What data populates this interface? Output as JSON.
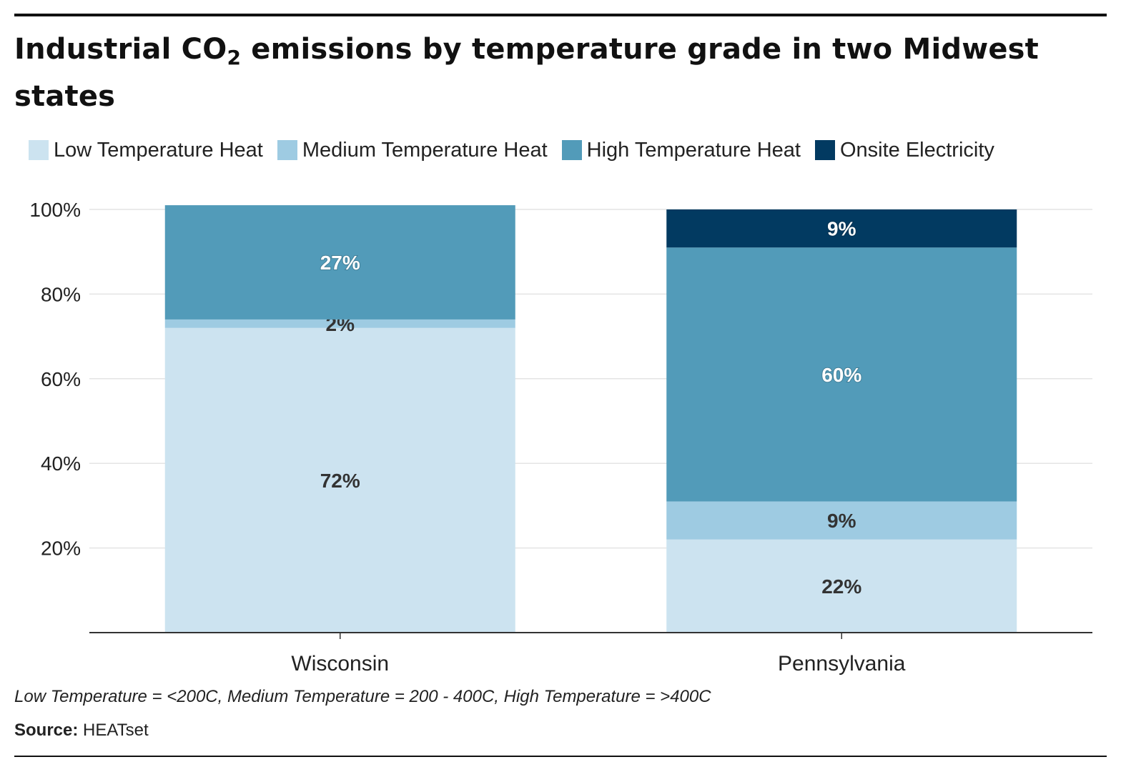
{
  "header": {
    "title_pre": "Industrial CO",
    "title_sub": "2",
    "title_post": " emissions by temperature grade in two Midwest states"
  },
  "legend": [
    {
      "label": "Low Temperature Heat",
      "color": "#cce3f0"
    },
    {
      "label": "Medium Temperature Heat",
      "color": "#9ecbe2"
    },
    {
      "label": "High Temperature Heat",
      "color": "#529bb9"
    },
    {
      "label": "Onsite Electricity",
      "color": "#023a61"
    }
  ],
  "chart_data": {
    "type": "bar",
    "stacked": true,
    "title": "Industrial CO2 emissions by temperature grade in two Midwest states",
    "categories": [
      "Wisconsin",
      "Pennsylvania"
    ],
    "series": [
      {
        "name": "Low Temperature Heat",
        "color": "#cce3f0",
        "values": [
          72,
          22
        ],
        "labels": [
          "72%",
          "22%"
        ]
      },
      {
        "name": "Medium Temperature Heat",
        "color": "#9ecbe2",
        "values": [
          2,
          9
        ],
        "labels": [
          "2%",
          "9%"
        ]
      },
      {
        "name": "High Temperature Heat",
        "color": "#529bb9",
        "values": [
          27,
          60
        ],
        "labels": [
          "27%",
          "60%"
        ]
      },
      {
        "name": "Onsite Electricity",
        "color": "#023a61",
        "values": [
          0,
          9
        ],
        "labels": [
          "",
          "9%"
        ]
      }
    ],
    "ylim": [
      0,
      100
    ],
    "yticks": [
      20,
      40,
      60,
      80,
      100
    ],
    "ytick_labels": [
      "20%",
      "40%",
      "60%",
      "80%",
      "100%"
    ],
    "xlabel": "",
    "ylabel": "",
    "grid": true,
    "legend_position": "top"
  },
  "footer": {
    "note": "Low Temperature = <200C, Medium Temperature = 200 - 400C, High Temperature = >400C",
    "source_label": "Source:",
    "source_text": " HEATset"
  }
}
